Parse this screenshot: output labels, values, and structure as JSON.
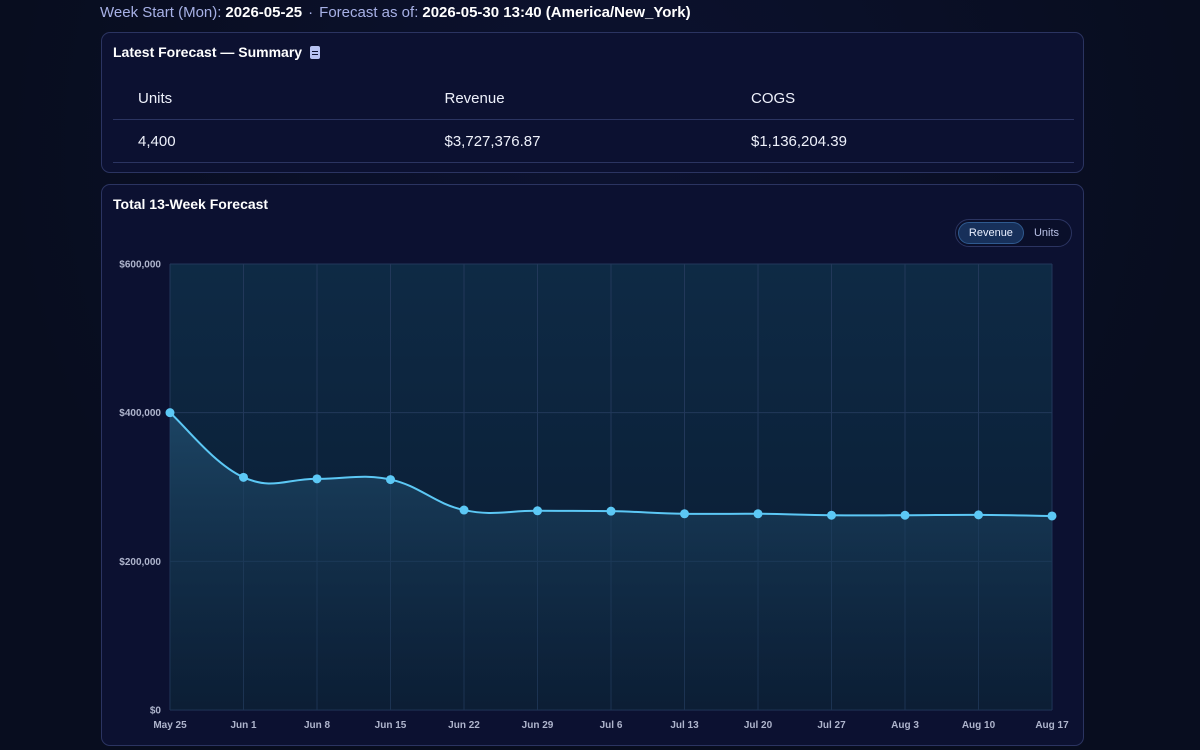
{
  "header": {
    "week_start_label": "Week Start (Mon):",
    "week_start_value": "2026-05-25",
    "separator": "·",
    "forecast_as_of_label": "Forecast as of:",
    "forecast_as_of_value": "2026-05-30 13:40 (America/New_York)"
  },
  "summary": {
    "title": "Latest Forecast — Summary",
    "icon": "document-icon",
    "columns": [
      "Units",
      "Revenue",
      "COGS"
    ],
    "values": [
      "4,400",
      "$3,727,376.87",
      "$1,136,204.39"
    ]
  },
  "chart_card": {
    "title": "Total 13-Week Forecast",
    "toggle": {
      "options": [
        "Revenue",
        "Units"
      ],
      "selected": "Revenue"
    }
  },
  "colors": {
    "line": "#5cc8f5",
    "plot_bg_top": "#0e2a45",
    "plot_bg_bottom": "#0a1a30",
    "grid": "#22385a"
  },
  "chart_data": {
    "type": "line",
    "title": "",
    "xlabel": "",
    "ylabel": "",
    "categories": [
      "May 25",
      "Jun 1",
      "Jun 8",
      "Jun 15",
      "Jun 22",
      "Jun 29",
      "Jul 6",
      "Jul 13",
      "Jul 20",
      "Jul 27",
      "Aug 3",
      "Aug 10",
      "Aug 17"
    ],
    "series": [
      {
        "name": "",
        "values": [
          400000,
          313000,
          311000,
          310000,
          269000,
          268000,
          267500,
          264000,
          264000,
          262000,
          262000,
          262500,
          261000
        ]
      }
    ],
    "ylim": [
      0,
      600000
    ],
    "yticks": [
      0,
      200000,
      400000,
      600000
    ],
    "ytick_labels": [
      "$0",
      "$200,000",
      "$400,000",
      "$600,000"
    ],
    "grid": true,
    "area_fill": true,
    "smooth": true
  }
}
